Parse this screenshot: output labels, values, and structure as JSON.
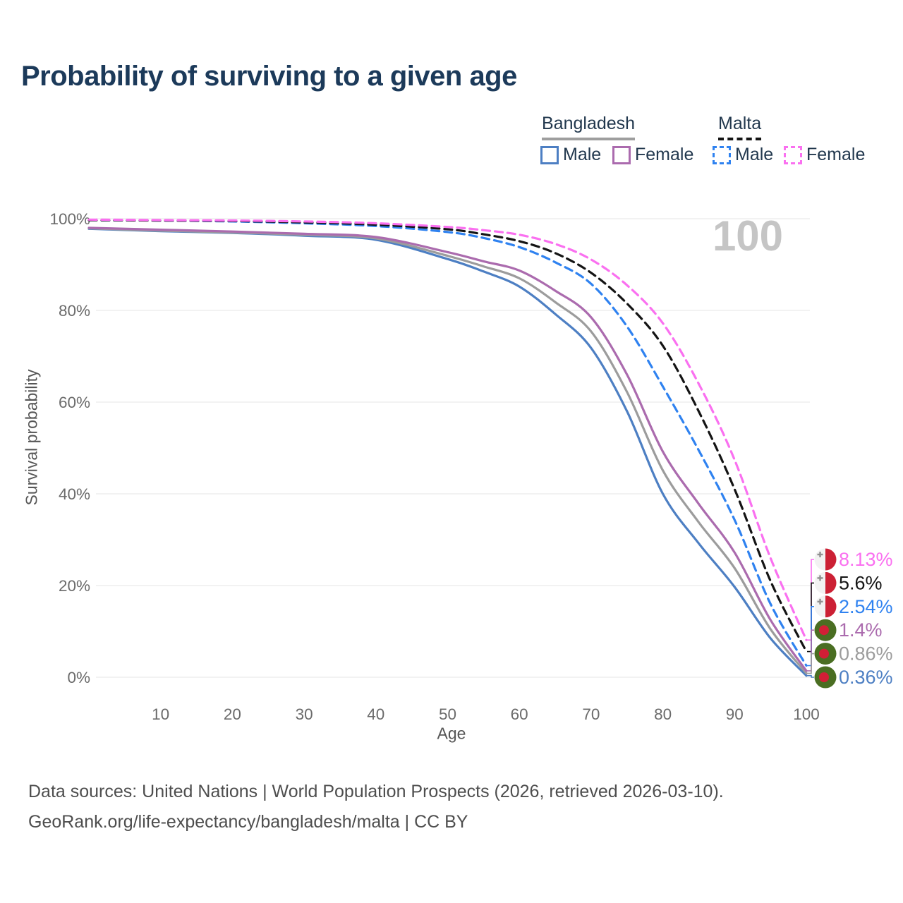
{
  "page": {
    "title": "Probability of surviving to a given age"
  },
  "legend": {
    "groups": [
      {
        "label": "Bangladesh",
        "line_color": "#9e9e9e",
        "line_style": "solid",
        "items": [
          {
            "label": "Male",
            "color": "#4d7fc3",
            "style": "solid"
          },
          {
            "label": "Female",
            "color": "#ab6bae",
            "style": "solid"
          }
        ]
      },
      {
        "label": "Malta",
        "line_color": "#141414",
        "line_style": "dashed",
        "items": [
          {
            "label": "Male",
            "color": "#2f82f0",
            "style": "dashed"
          },
          {
            "label": "Female",
            "color": "#fa70f0",
            "style": "dashed"
          }
        ]
      }
    ]
  },
  "chart_data": {
    "type": "line",
    "title": "Probability of surviving to a given age",
    "xlabel": "Age",
    "ylabel": "Survival probability",
    "xlim": [
      0,
      100
    ],
    "ylim": [
      0,
      100
    ],
    "grid": "horizontal-only",
    "gridline_color": "#e9e9e9",
    "tick_text_color": "#6b6b6b",
    "hover_age_label": "100",
    "x_ticks": [
      10,
      20,
      30,
      40,
      50,
      60,
      70,
      80,
      90,
      100
    ],
    "y_ticks": [
      {
        "value": 0,
        "label": "0%"
      },
      {
        "value": 20,
        "label": "20%"
      },
      {
        "value": 40,
        "label": "40%"
      },
      {
        "value": 60,
        "label": "60%"
      },
      {
        "value": 80,
        "label": "80%"
      },
      {
        "value": 100,
        "label": "100%"
      }
    ],
    "ages": [
      0,
      10,
      20,
      30,
      40,
      50,
      55,
      60,
      65,
      70,
      75,
      80,
      85,
      90,
      95,
      100
    ],
    "series": [
      {
        "id": "bangladesh-male",
        "country": "Bangladesh",
        "sex": "Male",
        "color": "#4d7fc3",
        "dashed": false,
        "flag": "bangladesh",
        "end_label": "0.36%",
        "values": [
          97.8,
          97.3,
          96.9,
          96.3,
          95.4,
          91.2,
          88.5,
          85.2,
          79.2,
          71.8,
          58.0,
          40.0,
          29.2,
          19.7,
          8.5,
          0.36
        ]
      },
      {
        "id": "bangladesh-both",
        "country": "Bangladesh",
        "sex": "Both",
        "color": "#9c9c9c",
        "dashed": false,
        "flag": "bangladesh",
        "end_label": "0.86%",
        "values": [
          97.9,
          97.4,
          97.0,
          96.5,
          95.7,
          91.9,
          89.6,
          87.0,
          81.8,
          75.4,
          62.2,
          45.1,
          33.8,
          23.8,
          10.5,
          0.86
        ]
      },
      {
        "id": "bangladesh-female",
        "country": "Bangladesh",
        "sex": "Female",
        "color": "#ab6bae",
        "dashed": false,
        "flag": "bangladesh",
        "end_label": "1.4%",
        "values": [
          98.0,
          97.6,
          97.2,
          96.7,
          96.0,
          92.7,
          90.7,
          88.7,
          84.3,
          78.5,
          66.0,
          49.2,
          37.8,
          27.2,
          12.5,
          1.4
        ]
      },
      {
        "id": "malta-male",
        "country": "Malta",
        "sex": "Male",
        "color": "#2f82f0",
        "dashed": true,
        "flag": "malta",
        "end_label": "2.54%",
        "values": [
          99.7,
          99.6,
          99.4,
          99.0,
          98.4,
          97.1,
          95.8,
          93.8,
          90.5,
          85.8,
          76.5,
          63.4,
          49.5,
          34.3,
          16.0,
          2.54
        ]
      },
      {
        "id": "malta-both",
        "country": "Malta",
        "sex": "Both",
        "color": "#141414",
        "dashed": true,
        "flag": "malta",
        "end_label": "5.6%",
        "values": [
          99.7,
          99.6,
          99.5,
          99.2,
          98.7,
          97.7,
          96.6,
          95.1,
          92.5,
          88.2,
          81.5,
          72.3,
          58.0,
          41.0,
          21.0,
          5.6
        ]
      },
      {
        "id": "malta-female",
        "country": "Malta",
        "sex": "Female",
        "color": "#fa70f0",
        "dashed": true,
        "flag": "malta",
        "end_label": "8.13%",
        "values": [
          99.8,
          99.7,
          99.6,
          99.4,
          99.0,
          98.2,
          97.5,
          96.5,
          94.5,
          91.1,
          85.5,
          77.2,
          64.0,
          47.4,
          26.0,
          8.13
        ]
      }
    ],
    "flag_colors": {
      "malta_white": "#f2f2f2",
      "malta_red": "#cc2034",
      "malta_cross": "#8f8f8f",
      "bangladesh_green": "#4a6e22",
      "bangladesh_red": "#d21f36"
    }
  },
  "footer": {
    "line1": "Data sources: United Nations | World Population Prospects (2026, retrieved 2026-03-10).",
    "line2": "GeoRank.org/life-expectancy/bangladesh/malta | CC BY"
  }
}
